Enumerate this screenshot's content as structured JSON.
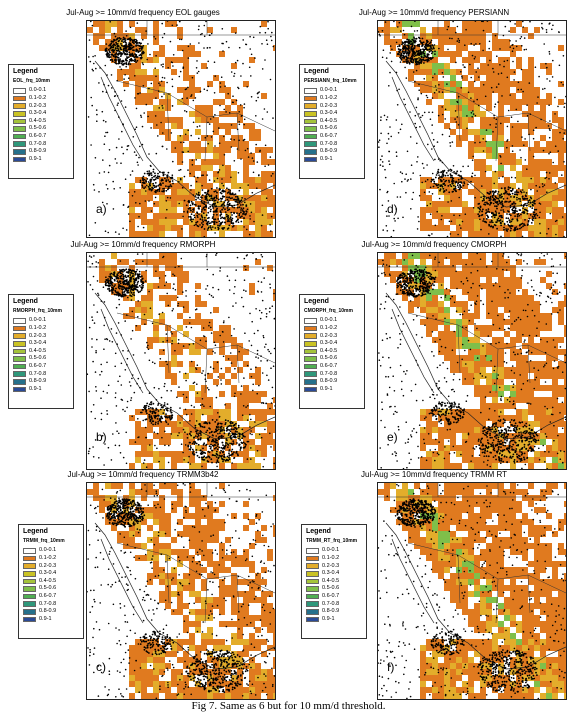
{
  "caption": "Fig 7. Same as 6 but for 10 mm/d threshold.",
  "legend_classes": [
    "0.0-0.1",
    "0.1-0.2",
    "0.2-0.3",
    "0.3-0.4",
    "0.4-0.5",
    "0.5-0.6",
    "0.6-0.7",
    "0.7-0.8",
    "0.8-0.9",
    "0.9-1"
  ],
  "legend_colors": [
    "#ffffff",
    "#e07a1f",
    "#e3ad2b",
    "#c9c225",
    "#a5c43a",
    "#7fbf4a",
    "#4fae52",
    "#2f977a",
    "#25708c",
    "#2a4a96"
  ],
  "panels": [
    {
      "title": "Jul-Aug >= 10mm/d frequency EOL gauges",
      "label": "a)",
      "legend_title": "Legend",
      "legend_field": "EOL_frq_10mm"
    },
    {
      "title": "Jul-Aug >= 10mm/d frequency PERSIANN",
      "label": "d)",
      "legend_title": "Legend",
      "legend_field": "PERSIANN_frq_10mm"
    },
    {
      "title": "Jul-Aug >= 10mm/d frequency RMORPH",
      "label": "b)",
      "legend_title": "Legend",
      "legend_field": "RMORPH_frq_10mm"
    },
    {
      "title": "Jul-Aug >= 10mm/d frequency CMORPH",
      "label": "e)",
      "legend_title": "Legend",
      "legend_field": "CMORPH_frq_10mm"
    },
    {
      "title": "Jul-Aug >= 10mm/d frequency TRMM3b42",
      "label": "c)",
      "legend_title": "Legend",
      "legend_field": "TRMM_frq_10mm"
    },
    {
      "title": "Jul-Aug >= 10mm/d frequency TRMM RT",
      "label": "f)",
      "legend_title": "Legend",
      "legend_field": "TRMM_RT_frq_10mm"
    }
  ]
}
